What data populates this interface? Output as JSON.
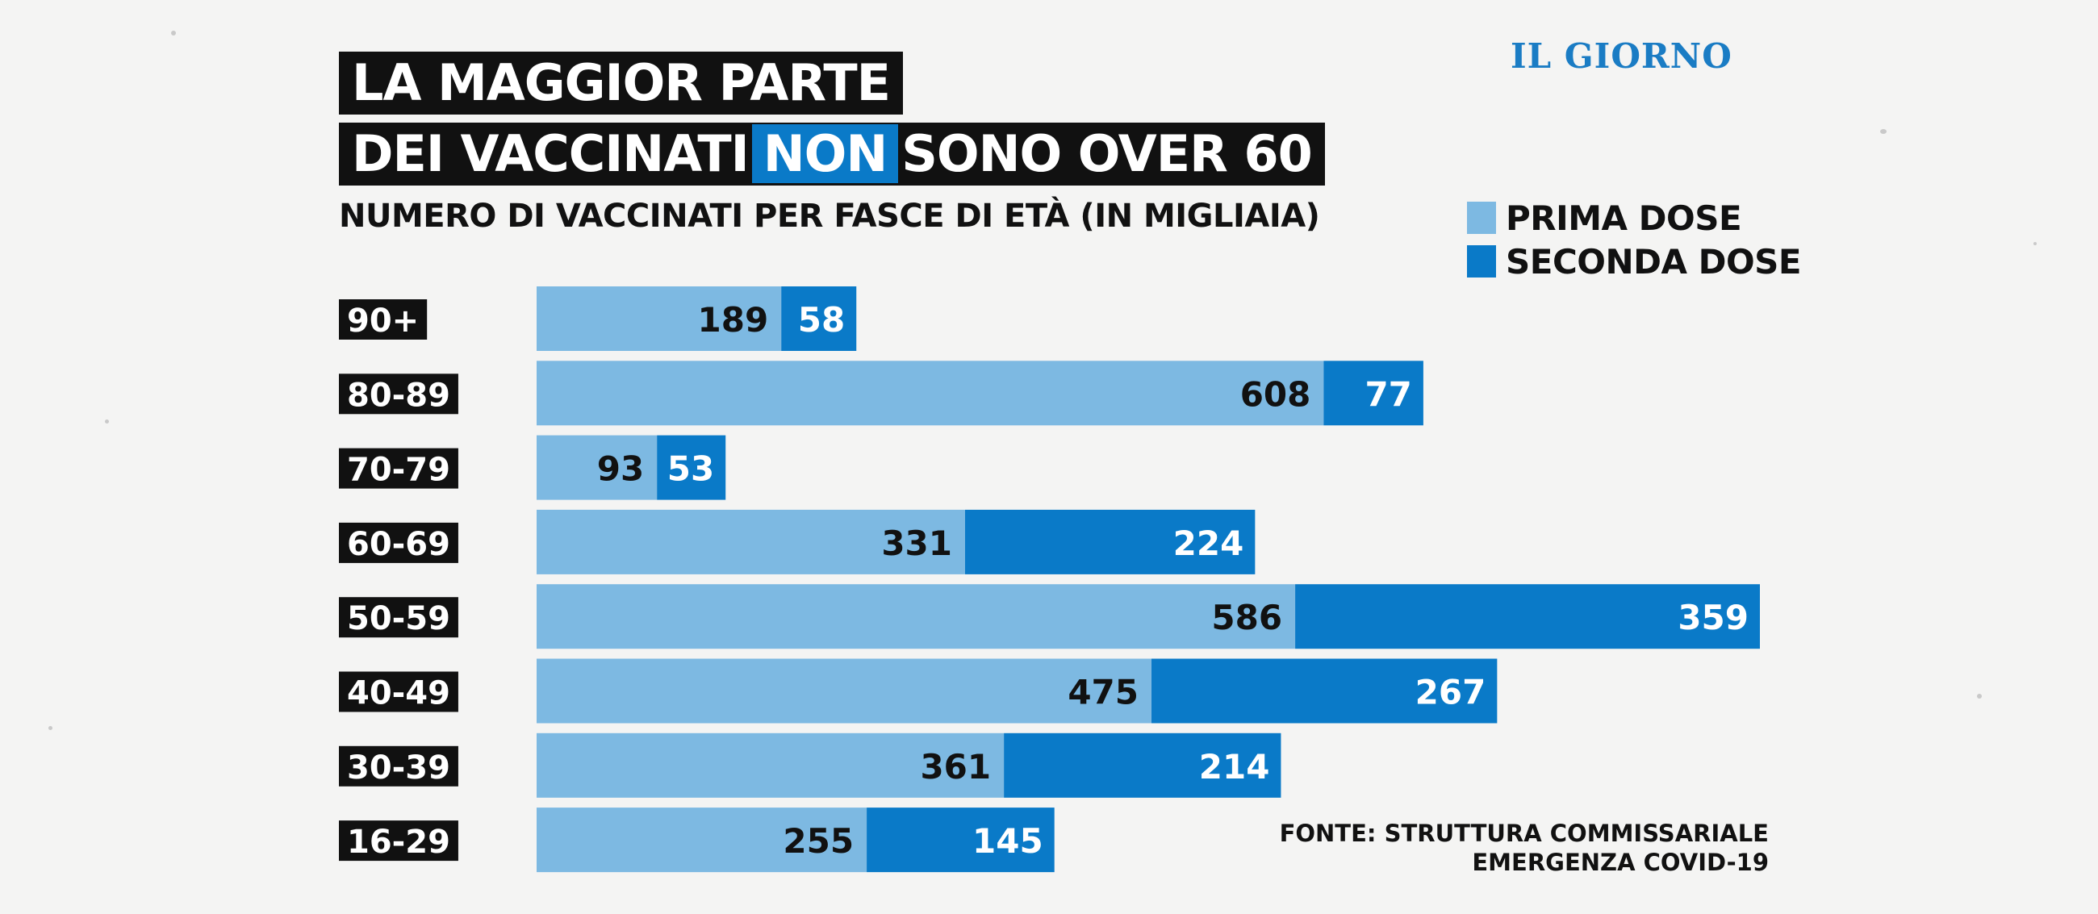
{
  "title": {
    "line1": "LA MAGGIOR PARTE",
    "line2_before": "DEI  VACCINATI",
    "line2_highlight": "NON",
    "line2_after": "SONO OVER 60"
  },
  "subtitle": "NUMERO DI VACCINATI PER FASCE DI ETÀ (IN MIGLIAIA)",
  "logo": "IL GIORNO",
  "source": {
    "line1": "FONTE: STRUTTURA COMMISSARIALE",
    "line2": "EMERGENZA COVID-19"
  },
  "colors": {
    "prima": "#7db9e2",
    "seconda": "#0a7ac8",
    "title_bg": "#111111",
    "highlight": "#0a7ac8",
    "logo": "#1a7cc4"
  },
  "chart_data": {
    "type": "bar",
    "orientation": "horizontal",
    "stacked": true,
    "title": "LA MAGGIOR PARTE DEI  VACCINATI NON SONO OVER 60",
    "subtitle": "NUMERO DI VACCINATI PER FASCE DI ETÀ (IN MIGLIAIA)",
    "categories": [
      "90+",
      "80-89",
      "70-79",
      "60-69",
      "50-59",
      "40-49",
      "30-39",
      "16-29"
    ],
    "series": [
      {
        "name": "PRIMA DOSE",
        "values": [
          189,
          608,
          93,
          331,
          586,
          475,
          361,
          255
        ]
      },
      {
        "name": "SECONDA DOSE",
        "values": [
          58,
          77,
          53,
          224,
          359,
          267,
          214,
          145
        ]
      }
    ],
    "xlim": [
      0,
      945
    ],
    "legend_position": "top-right",
    "grid": false
  }
}
